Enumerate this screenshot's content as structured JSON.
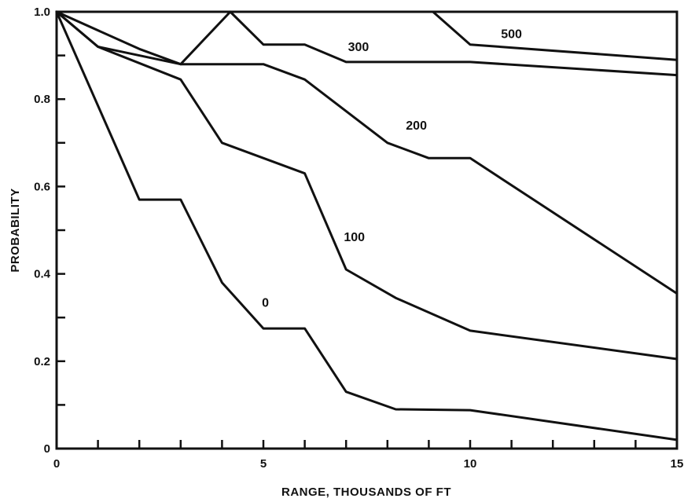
{
  "chart_data": {
    "type": "line",
    "xlabel": "RANGE, THOUSANDS OF FT",
    "ylabel": "PROBABILITY",
    "xlim": [
      0,
      15
    ],
    "ylim": [
      0,
      1.0
    ],
    "x_ticks": [
      0,
      1,
      2,
      3,
      4,
      5,
      6,
      7,
      8,
      9,
      10,
      11,
      12,
      13,
      14,
      15
    ],
    "x_tick_labels": [
      {
        "value": 0,
        "label": "0"
      },
      {
        "value": 5,
        "label": "5"
      },
      {
        "value": 10,
        "label": "10"
      },
      {
        "value": 15,
        "label": "15"
      }
    ],
    "y_ticks": [
      0,
      0.1,
      0.2,
      0.3,
      0.4,
      0.5,
      0.6,
      0.7,
      0.8,
      0.9,
      1.0
    ],
    "y_tick_labels": [
      {
        "value": 0,
        "label": "0"
      },
      {
        "value": 0.2,
        "label": "0.2"
      },
      {
        "value": 0.4,
        "label": "0.4"
      },
      {
        "value": 0.6,
        "label": "0.6"
      },
      {
        "value": 0.8,
        "label": "0.8"
      },
      {
        "value": 1.0,
        "label": "1.0"
      }
    ],
    "grid": false,
    "series": [
      {
        "name": "0",
        "x": [
          0,
          2,
          3,
          4,
          5,
          6,
          7,
          8.2,
          10,
          15
        ],
        "y": [
          1.0,
          0.57,
          0.57,
          0.38,
          0.275,
          0.275,
          0.13,
          0.09,
          0.088,
          0.02
        ]
      },
      {
        "name": "100",
        "x": [
          0,
          1,
          3,
          4,
          6,
          7,
          8.2,
          10,
          15
        ],
        "y": [
          1.0,
          0.92,
          0.845,
          0.7,
          0.63,
          0.41,
          0.345,
          0.27,
          0.205
        ]
      },
      {
        "name": "200",
        "x": [
          0,
          2,
          3,
          5,
          6,
          8,
          9,
          10,
          15
        ],
        "y": [
          1.0,
          0.915,
          0.88,
          0.88,
          0.845,
          0.7,
          0.665,
          0.665,
          0.355
        ]
      },
      {
        "name": "300",
        "x": [
          0,
          1,
          3,
          4.2,
          5,
          6,
          7,
          10,
          15
        ],
        "y": [
          1.0,
          0.92,
          0.88,
          1.0,
          0.925,
          0.925,
          0.885,
          0.885,
          0.855
        ]
      },
      {
        "name": "500",
        "x": [
          1,
          4.2,
          9.1,
          10,
          15
        ],
        "y": [
          1.0,
          1.0,
          1.0,
          0.925,
          0.89
        ]
      }
    ],
    "series_labels": [
      {
        "text": "0",
        "x": 5.05,
        "y": 0.325
      },
      {
        "text": "100",
        "x": 7.2,
        "y": 0.475
      },
      {
        "text": "200",
        "x": 8.7,
        "y": 0.73
      },
      {
        "text": "300",
        "x": 7.3,
        "y": 0.91
      },
      {
        "text": "500",
        "x": 11.0,
        "y": 0.94
      }
    ]
  }
}
